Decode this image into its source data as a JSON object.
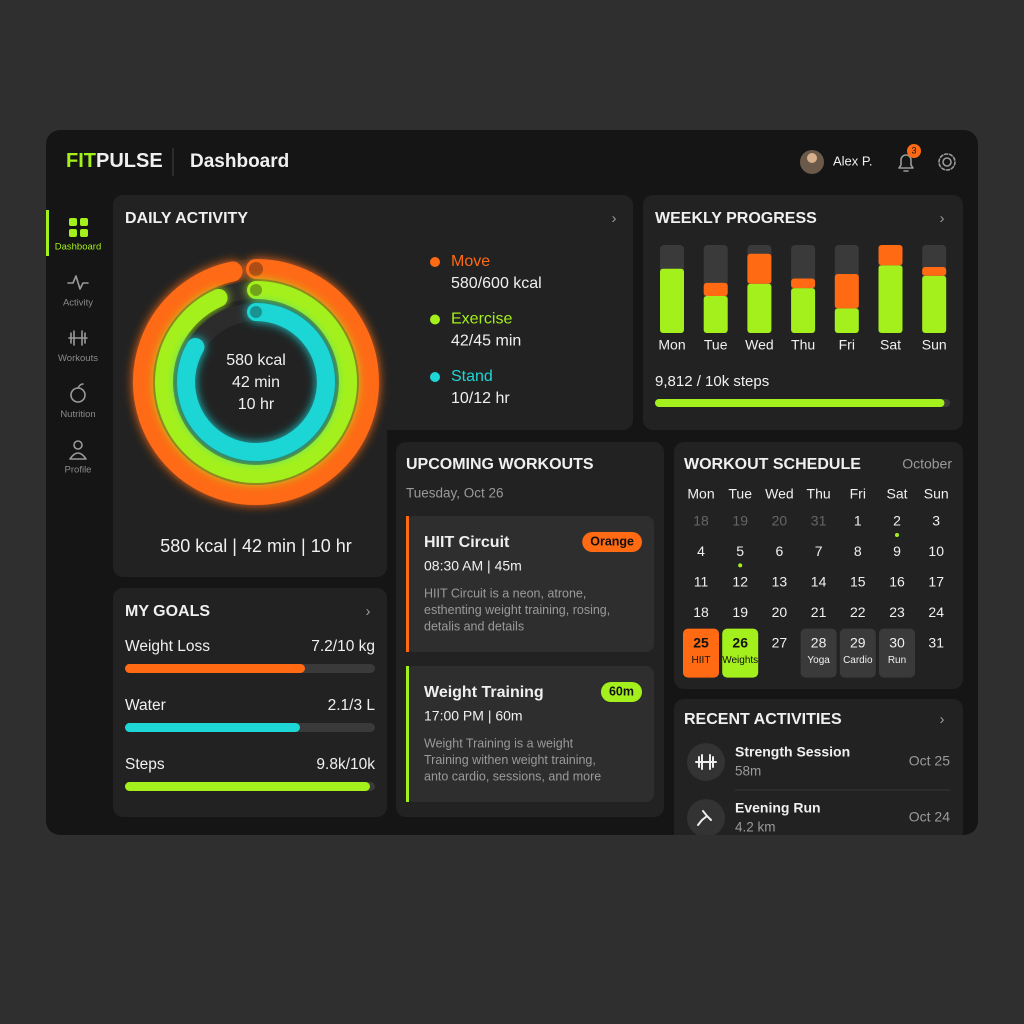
{
  "header": {
    "logo_accent": "FIT",
    "logo_rest": "PULSE",
    "page_title": "Dashboard",
    "user_name": "Alex P.",
    "notification_count": "3"
  },
  "sidebar": {
    "items": [
      "Dashboard",
      "Activity",
      "Workouts",
      "Nutrition",
      "Profile"
    ],
    "active": 0
  },
  "daily_activity": {
    "title": "DAILY ACTIVITY",
    "center_lines": [
      "580 kcal",
      "42 min",
      "10 hr"
    ],
    "summary": "580 kcal | 42 min | 10 hr",
    "rings": [
      {
        "label": "Move",
        "value": 580,
        "goal": 600,
        "value_label": "580/600 kcal",
        "color": "#ff6a13"
      },
      {
        "label": "Exercise",
        "value": 42,
        "goal": 45,
        "value_label": "42/45 min",
        "color": "#a4f01c"
      },
      {
        "label": "Stand",
        "value": 10,
        "goal": 12,
        "value_label": "10/12 hr",
        "color": "#1fd6d6"
      }
    ]
  },
  "weekly_progress": {
    "title": "WEEKLY PROGRESS",
    "type": "bar",
    "categories": [
      "Mon",
      "Tue",
      "Wed",
      "Thu",
      "Fri",
      "Sat",
      "Sun"
    ],
    "ylim": [
      0,
      100
    ],
    "series": [
      {
        "color": "#a4f01c",
        "values": [
          73,
          42,
          56,
          51,
          28,
          77,
          65
        ]
      },
      {
        "color": "#ff6a13",
        "values": [
          0,
          15,
          34,
          11,
          39,
          23,
          10
        ]
      }
    ],
    "steps_label": "9,812 / 10k steps",
    "steps_value": 9812,
    "steps_goal": 10000
  },
  "upcoming_workouts": {
    "title": "UPCOMING WORKOUTS",
    "date": "Tuesday, Oct 26",
    "items": [
      {
        "title": "HIIT Circuit",
        "tag": "Orange",
        "time": "08:30 AM | 45m",
        "color": "#ff6a13",
        "description": [
          "HIIT Circuit is a neon, atrone,",
          "esthenting weight training, rosing,",
          "detalis and details"
        ]
      },
      {
        "title": "Weight Training",
        "tag": "60m",
        "time": "17:00 PM | 60m",
        "color": "#a4f01c",
        "description": [
          "Weight Training is a weight",
          "Training withen weight training,",
          "anto cardio, sessions, and more"
        ]
      }
    ]
  },
  "schedule": {
    "title": "WORKOUT SCHEDULE",
    "month": "October",
    "weekdays": [
      "Mon",
      "Tue",
      "Wed",
      "Thu",
      "Fri",
      "Sat",
      "Sun"
    ],
    "weeks": [
      [
        {
          "day": "18",
          "style": "muted"
        },
        {
          "day": "19",
          "style": "muted"
        },
        {
          "day": "20",
          "style": "muted"
        },
        {
          "day": "31",
          "style": "muted"
        },
        {
          "day": "1"
        },
        {
          "day": "2",
          "dot": true
        },
        {
          "day": "3"
        }
      ],
      [
        {
          "day": "4"
        },
        {
          "day": "5",
          "dot": true
        },
        {
          "day": "6"
        },
        {
          "day": "7"
        },
        {
          "day": "8"
        },
        {
          "day": "9"
        },
        {
          "day": "10"
        }
      ],
      [
        {
          "day": "11"
        },
        {
          "day": "12"
        },
        {
          "day": "13"
        },
        {
          "day": "14"
        },
        {
          "day": "15"
        },
        {
          "day": "16"
        },
        {
          "day": "17"
        }
      ],
      [
        {
          "day": "18"
        },
        {
          "day": "19"
        },
        {
          "day": "20"
        },
        {
          "day": "21"
        },
        {
          "day": "22"
        },
        {
          "day": "23"
        },
        {
          "day": "24"
        }
      ],
      [
        {
          "day": "25",
          "label": "HIIT",
          "style": "orange"
        },
        {
          "day": "26",
          "label": "Weights",
          "style": "green"
        },
        {
          "day": "27"
        },
        {
          "day": "28",
          "label": "Yoga",
          "style": "gray"
        },
        {
          "day": "29",
          "label": "Cardio",
          "style": "gray"
        },
        {
          "day": "30",
          "label": "Run",
          "style": "gray"
        },
        {
          "day": "31"
        }
      ]
    ]
  },
  "goals": {
    "title": "MY GOALS",
    "items": [
      {
        "label": "Weight Loss",
        "value": 7.2,
        "goal": 10,
        "value_label": "7.2/10 kg",
        "color": "#ff6a13"
      },
      {
        "label": "Water",
        "value": 2.1,
        "goal": 3,
        "value_label": "2.1/3 L",
        "color": "#1fd6d6"
      },
      {
        "label": "Steps",
        "value": 9800,
        "goal": 10000,
        "value_label": "9.8k/10k",
        "color": "#a4f01c"
      }
    ]
  },
  "recent_activities": {
    "title": "RECENT ACTIVITIES",
    "items": [
      {
        "title": "Strength Session",
        "detail": "58m",
        "date": "Oct 25"
      },
      {
        "title": "Evening Run",
        "detail": "4.2 km",
        "date": "Oct 24"
      }
    ]
  }
}
